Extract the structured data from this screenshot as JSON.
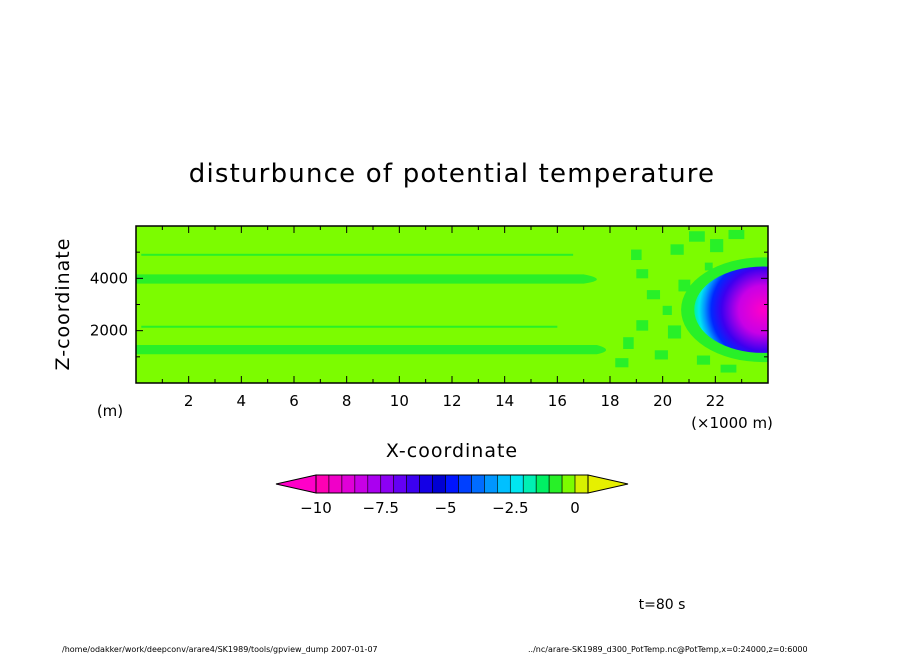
{
  "chart_data": {
    "type": "heatmap",
    "title": "disturbunce of potential temperature",
    "xlabel": "X-coordinate",
    "ylabel": "Z-coordinate",
    "x_unit": "(×1000 m)",
    "y_unit": "(m)",
    "xlim": [
      0,
      24000
    ],
    "ylim": [
      0,
      6000
    ],
    "x_ticks": [
      "2",
      "4",
      "6",
      "8",
      "10",
      "12",
      "14",
      "16",
      "18",
      "20",
      "22"
    ],
    "x_tick_values": [
      2000,
      4000,
      6000,
      8000,
      10000,
      12000,
      14000,
      16000,
      18000,
      20000,
      22000
    ],
    "y_ticks": [
      "2000",
      "4000"
    ],
    "y_tick_values": [
      2000,
      4000
    ],
    "colorbar": {
      "min": -10,
      "max": 0.5,
      "levels": 21,
      "tick_labels": [
        "−10",
        "−7.5",
        "−5",
        "−2.5",
        "0"
      ],
      "tick_values": [
        -10,
        -7.5,
        -5,
        -2.5,
        0
      ],
      "colors": [
        "#ff00b4",
        "#f000c8",
        "#e000d8",
        "#c800e6",
        "#aa00f0",
        "#8c00f4",
        "#6400f4",
        "#3c00f0",
        "#1400e6",
        "#0000d2",
        "#0014ff",
        "#0040ff",
        "#006cff",
        "#0096ff",
        "#00c0ff",
        "#00e6f0",
        "#00f0b4",
        "#00f064",
        "#28f028",
        "#7cfc00",
        "#d8f000"
      ],
      "under_color": "#ff00c8",
      "over_color": "#e6f000"
    },
    "cold_bubble": {
      "center_x": 23800,
      "center_z": 2800,
      "min_value": -10
    },
    "annotations": {
      "time": "t=80 s",
      "footer_left": "/home/odakker/work/deepconv/arare4/SK1989/tools/gpview_dump  2007-01-07",
      "footer_right": "../nc/arare-SK1989_d300_PotTemp.nc@PotTemp,x=0:24000,z=0:6000"
    }
  }
}
